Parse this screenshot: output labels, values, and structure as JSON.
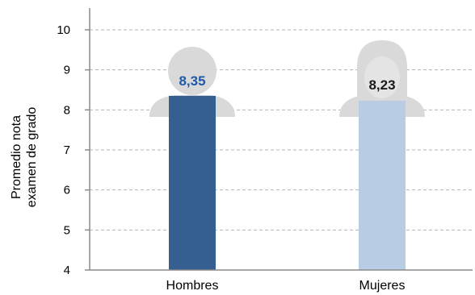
{
  "chart_data": {
    "type": "bar",
    "categories": [
      "Hombres",
      "Mujeres"
    ],
    "values": [
      8.35,
      8.23
    ],
    "value_labels": [
      "8,35",
      "8,23"
    ],
    "ylabel_lines": [
      "Promedio nota",
      "examen de grado"
    ],
    "ylim": [
      4,
      10
    ],
    "yticks": [
      4,
      5,
      6,
      7,
      8,
      9,
      10
    ],
    "grid": true,
    "legend": "none",
    "bar_colors": [
      "#365f91",
      "#b8cce4"
    ],
    "label_colors": [
      "#1f5aa8",
      "#1a1a1a"
    ],
    "category_icons": [
      "male-person-icon",
      "female-person-icon"
    ],
    "icon_color": "#d9d9d9"
  }
}
